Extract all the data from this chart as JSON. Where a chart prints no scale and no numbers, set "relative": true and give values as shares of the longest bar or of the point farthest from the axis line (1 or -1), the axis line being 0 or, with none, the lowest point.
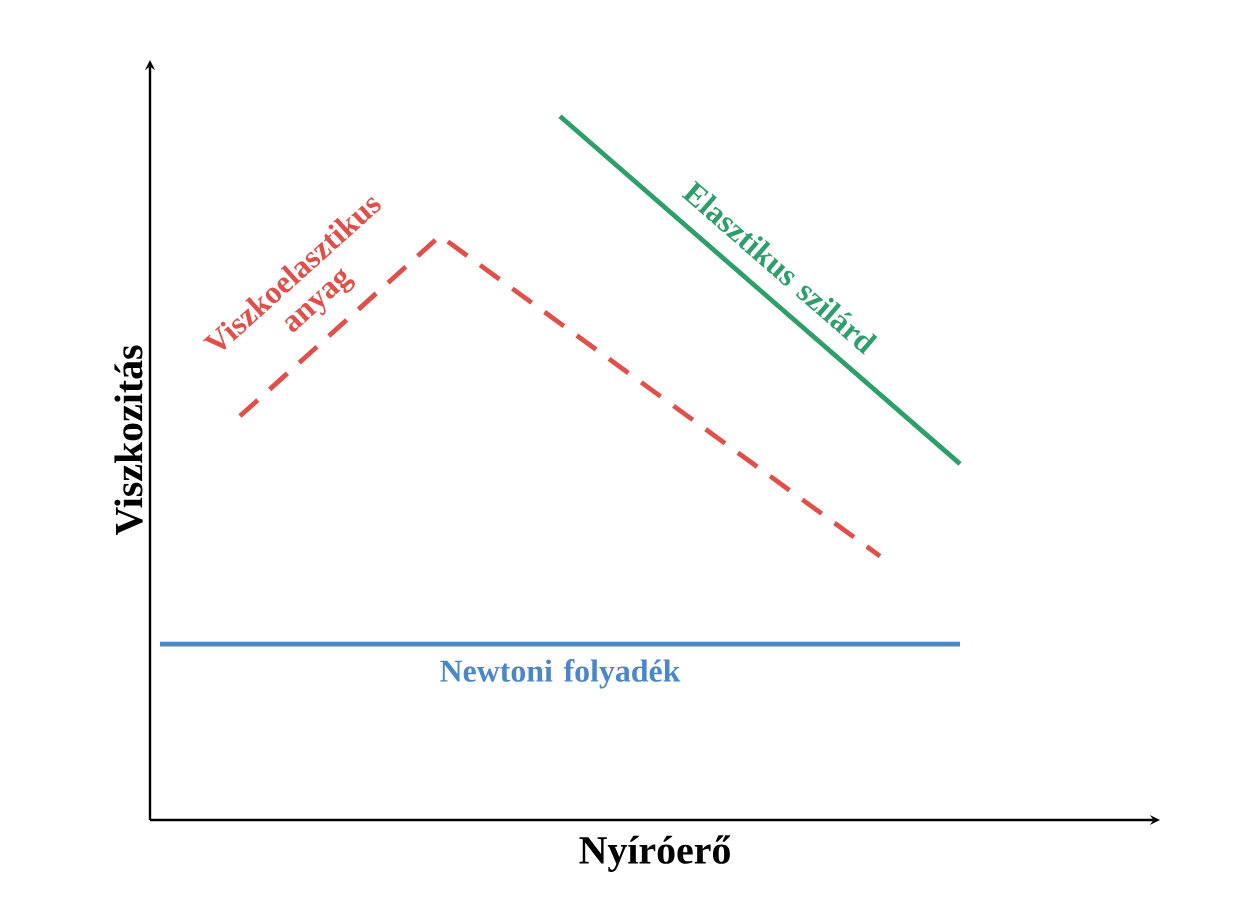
{
  "chart_data": {
    "type": "line",
    "xlabel": "Nyíróerő",
    "ylabel": "Viszkozitás",
    "relative": true,
    "categories": [
      null,
      null,
      null,
      null,
      null,
      null,
      null,
      null,
      null,
      null,
      null,
      null,
      null,
      null,
      null,
      null,
      null,
      null,
      null,
      null,
      null
    ],
    "series": [
      {
        "name": "Viszkoelasztikus anyag",
        "color": "#e0504a",
        "line_style": "dashed",
        "values": [
          null,
          null,
          0.574,
          null,
          null,
          null,
          null,
          0.83,
          null,
          null,
          null,
          null,
          null,
          null,
          null,
          null,
          null,
          null,
          0.375,
          null,
          null
        ]
      },
      {
        "name": "Elasztikus szilárd",
        "color": "#2e9e6a",
        "line_style": "solid",
        "values": [
          null,
          null,
          null,
          null,
          null,
          null,
          null,
          null,
          null,
          null,
          1,
          null,
          null,
          null,
          null,
          null,
          null,
          null,
          null,
          null,
          0.506
        ]
      },
      {
        "name": "Newtoni folyadék",
        "color": "#4a86c8",
        "line_style": "solid",
        "values": [
          0.25,
          null,
          null,
          null,
          null,
          null,
          null,
          null,
          null,
          null,
          null,
          null,
          null,
          null,
          null,
          null,
          null,
          null,
          null,
          null,
          0.25
        ]
      }
    ]
  }
}
